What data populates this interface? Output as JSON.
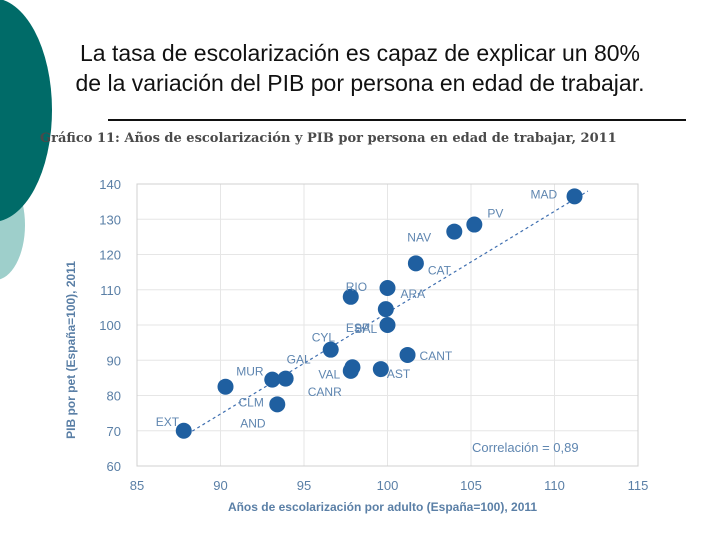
{
  "slide": {
    "title_line1": "La tasa de escolarización es capaz de explicar un 80%",
    "title_line2": "de la variación del PIB por persona en edad de trabajar."
  },
  "colors": {
    "teal": "#006b68",
    "light_teal": "#9ecfcb",
    "point": "#1f5fa0",
    "axis_text": "#5a7fa6",
    "label": "#5f86b0",
    "trend": "#3f6fb0"
  },
  "chart_data": {
    "type": "scatter",
    "title": "Gráfico 11: Años de escolarización y PIB por persona en edad de trabajar, 2011",
    "xlabel": "Años de escolarización por adulto (España=100), 2011",
    "ylabel": "PIB por pet (España=100), 2011",
    "xlim": [
      85,
      115
    ],
    "ylim": [
      60,
      140
    ],
    "xticks": [
      85,
      90,
      95,
      100,
      105,
      110,
      115
    ],
    "yticks": [
      60,
      70,
      80,
      90,
      100,
      110,
      120,
      130,
      140
    ],
    "grid": true,
    "annotation": "Correlación = 0,89",
    "points": [
      {
        "label": "MAD",
        "x": 111.2,
        "y": 136.5
      },
      {
        "label": "PV",
        "x": 105.2,
        "y": 128.5
      },
      {
        "label": "NAV",
        "x": 104.0,
        "y": 126.5
      },
      {
        "label": "CAT",
        "x": 101.7,
        "y": 117.5
      },
      {
        "label": "RIO",
        "x": 97.8,
        "y": 108.0
      },
      {
        "label": "ARA",
        "x": 100.0,
        "y": 110.5
      },
      {
        "label": "ESP",
        "x": 99.9,
        "y": 104.5
      },
      {
        "label": "BAL",
        "x": 100.0,
        "y": 100.0
      },
      {
        "label": "CYL",
        "x": 96.6,
        "y": 93.0
      },
      {
        "label": "CANT",
        "x": 101.2,
        "y": 91.5
      },
      {
        "label": "AST",
        "x": 99.6,
        "y": 87.5
      },
      {
        "label": "VAL",
        "x": 97.9,
        "y": 88.0
      },
      {
        "label": "CANR",
        "x": 97.8,
        "y": 87.0
      },
      {
        "label": "MUR",
        "x": 93.1,
        "y": 84.5
      },
      {
        "label": "GAL",
        "x": 93.9,
        "y": 84.8
      },
      {
        "label": "CLM",
        "x": 90.3,
        "y": 82.5
      },
      {
        "label": "AND",
        "x": 93.4,
        "y": 77.5
      },
      {
        "label": "EXT",
        "x": 87.8,
        "y": 70.0
      }
    ],
    "trendline": {
      "x": [
        88,
        112
      ],
      "y": [
        69,
        138
      ]
    }
  }
}
